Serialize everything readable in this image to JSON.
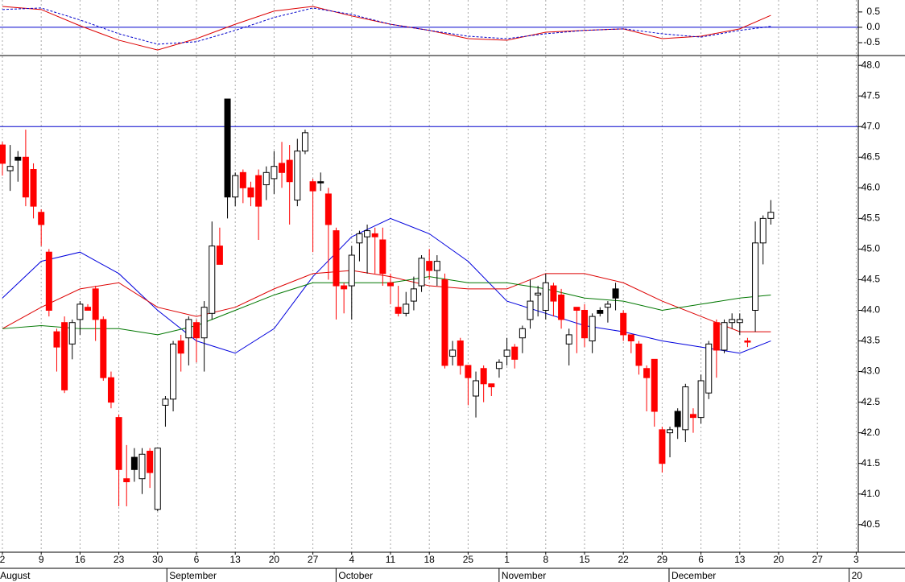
{
  "chart_data": [
    {
      "type": "line",
      "x": [
        0,
        5,
        10,
        15,
        20,
        25,
        30,
        35,
        40,
        45,
        50,
        55,
        60,
        65,
        70,
        75,
        80,
        85,
        90,
        95,
        99
      ],
      "series": [
        {
          "color": "#dd0000",
          "dash": false,
          "values": [
            0.68,
            0.58,
            0.05,
            -0.42,
            -0.74,
            -0.37,
            0.1,
            0.53,
            0.68,
            0.37,
            0.1,
            -0.1,
            -0.37,
            -0.42,
            -0.16,
            -0.1,
            -0.05,
            -0.37,
            -0.29,
            -0.05,
            0.39
          ]
        },
        {
          "color": "#0000cc",
          "dash": true,
          "values": [
            0.58,
            0.63,
            0.24,
            -0.21,
            -0.55,
            -0.47,
            -0.1,
            0.32,
            0.63,
            0.42,
            0.1,
            -0.1,
            -0.29,
            -0.37,
            -0.21,
            -0.1,
            -0.05,
            -0.21,
            -0.32,
            -0.1,
            0.03
          ]
        }
      ],
      "ylim": [
        -0.92,
        0.89
      ],
      "yticks": [
        0.5,
        {
          "value": 0,
          "label": "0.0"
        },
        -0.5
      ],
      "hline": 0,
      "hline_color": "#0000cc"
    },
    {
      "type": "candlestick",
      "open": [
        46.7,
        46.28,
        46.5,
        46.5,
        46.3,
        45.6,
        44.95,
        43.65,
        43.8,
        43.45,
        43.85,
        44.05,
        44.35,
        43.85,
        42.9,
        42.25,
        41.25,
        41.6,
        41.25,
        41.7,
        40.75,
        42.45,
        42.55,
        43.5,
        43.55,
        43.8,
        43.55,
        43.95,
        45.05,
        47.45,
        45.85,
        46.25,
        46.0,
        46.2,
        46.05,
        46.15,
        46.4,
        46.45,
        45.8,
        46.6,
        46.1,
        46.1,
        45.9,
        45.3,
        44.4,
        44.4,
        45.1,
        45.2,
        45.25,
        45.15,
        44.45,
        44.05,
        43.95,
        44.15,
        44.4,
        44.8,
        44.65,
        44.5,
        43.25,
        43.5,
        43.1,
        42.6,
        43.05,
        42.8,
        43.05,
        43.25,
        43.4,
        43.55,
        43.85,
        44.25,
        44.0,
        44.4,
        44.25,
        43.45,
        44.05,
        44.0,
        43.5,
        44.0,
        44.05,
        44.35,
        43.95,
        43.6,
        43.45,
        43.05,
        43.2,
        42.05,
        42.0,
        42.35,
        42.05,
        42.3,
        42.25,
        42.65,
        43.8,
        43.35,
        43.8,
        43.8,
        43.5,
        44.0,
        45.1,
        45.5
      ],
      "high": [
        46.75,
        46.7,
        46.6,
        46.95,
        46.4,
        45.65,
        45.0,
        43.7,
        43.9,
        43.85,
        44.15,
        44.1,
        44.4,
        43.9,
        43.0,
        42.3,
        41.8,
        41.75,
        41.75,
        41.75,
        41.75,
        42.6,
        43.5,
        43.6,
        43.9,
        43.85,
        44.15,
        45.45,
        45.35,
        47.45,
        46.25,
        46.3,
        46.1,
        46.3,
        46.35,
        46.6,
        46.75,
        46.7,
        46.8,
        46.95,
        46.15,
        46.25,
        46.0,
        45.35,
        44.45,
        45.05,
        45.3,
        45.4,
        45.35,
        45.35,
        44.6,
        44.4,
        44.3,
        44.55,
        44.9,
        45.0,
        44.9,
        44.6,
        43.5,
        43.55,
        43.1,
        43.0,
        43.1,
        42.8,
        43.2,
        43.55,
        43.45,
        43.75,
        44.5,
        44.4,
        44.6,
        44.45,
        44.35,
        43.7,
        44.05,
        44.1,
        43.95,
        44.05,
        44.15,
        44.45,
        44.0,
        43.6,
        43.5,
        43.1,
        43.2,
        42.1,
        42.1,
        42.4,
        42.8,
        42.4,
        42.95,
        43.5,
        43.85,
        43.85,
        43.95,
        43.95,
        43.55,
        45.45,
        45.55,
        45.8
      ],
      "low": [
        46.2,
        45.95,
        46.1,
        45.7,
        45.5,
        45.05,
        43.9,
        43.0,
        42.65,
        43.2,
        43.6,
        44.0,
        43.5,
        42.85,
        42.4,
        40.8,
        40.8,
        41.2,
        41.0,
        41.1,
        40.72,
        42.1,
        42.35,
        43.0,
        43.1,
        43.15,
        43.0,
        43.85,
        44.75,
        45.5,
        45.7,
        45.75,
        45.7,
        45.15,
        45.8,
        45.9,
        46.0,
        45.4,
        45.7,
        46.55,
        44.95,
        45.95,
        44.5,
        43.85,
        43.95,
        43.85,
        44.8,
        44.6,
        44.6,
        44.4,
        44.1,
        43.9,
        43.9,
        44.0,
        44.3,
        44.5,
        44.4,
        43.05,
        43.1,
        42.95,
        42.45,
        42.25,
        42.5,
        42.6,
        42.9,
        43.1,
        43.05,
        43.3,
        43.7,
        43.9,
        43.85,
        43.9,
        43.7,
        43.1,
        43.3,
        43.4,
        43.3,
        43.9,
        43.8,
        44.0,
        43.5,
        43.3,
        42.95,
        42.35,
        42.1,
        41.35,
        41.6,
        41.9,
        41.85,
        42.0,
        42.15,
        42.55,
        42.9,
        43.3,
        43.7,
        43.6,
        43.4,
        43.65,
        44.75,
        45.4
      ],
      "close": [
        46.4,
        46.35,
        46.45,
        45.85,
        45.7,
        45.4,
        44.0,
        43.4,
        42.7,
        43.8,
        44.1,
        44.0,
        43.85,
        42.9,
        42.5,
        41.4,
        41.2,
        41.4,
        41.65,
        41.35,
        41.75,
        42.55,
        43.45,
        43.3,
        43.85,
        43.55,
        44.05,
        45.05,
        44.75,
        45.85,
        46.2,
        46.0,
        45.85,
        45.7,
        46.25,
        46.35,
        46.25,
        46.1,
        46.6,
        46.9,
        45.95,
        46.08,
        45.4,
        44.4,
        44.35,
        44.9,
        45.25,
        45.3,
        45.2,
        44.6,
        44.4,
        43.95,
        44.1,
        44.35,
        44.85,
        44.65,
        44.8,
        43.1,
        43.35,
        43.1,
        42.9,
        42.85,
        42.8,
        42.75,
        43.15,
        43.35,
        43.2,
        43.7,
        44.15,
        44.28,
        44.45,
        44.15,
        43.85,
        43.6,
        44.0,
        43.55,
        43.9,
        43.95,
        44.1,
        44.2,
        43.6,
        43.5,
        43.1,
        42.9,
        42.35,
        41.5,
        42.05,
        42.1,
        42.75,
        42.25,
        42.85,
        43.45,
        43.35,
        43.8,
        43.85,
        43.85,
        43.48,
        45.1,
        45.5,
        45.6
      ],
      "fills": [
        "#ff0000",
        "#ffffff",
        "#000000",
        "#ff0000",
        "#ff0000",
        "#ff0000",
        "#ff0000",
        "#ff0000",
        "#ff0000",
        "#ffffff",
        "#ffffff",
        "#ff0000",
        "#ff0000",
        "#ff0000",
        "#ff0000",
        "#ff0000",
        "#ff0000",
        "#000000",
        "#ffffff",
        "#ff0000",
        "#ffffff",
        "#ffffff",
        "#ffffff",
        "#ff0000",
        "#ffffff",
        "#ff0000",
        "#ffffff",
        "#ffffff",
        "#ff0000",
        "#000000",
        "#ffffff",
        "#ff0000",
        "#ff0000",
        "#ff0000",
        "#ffffff",
        "#ffffff",
        "#ff0000",
        "#ff0000",
        "#ffffff",
        "#ffffff",
        "#ff0000",
        "#000000",
        "#ff0000",
        "#ff0000",
        "#ff0000",
        "#ffffff",
        "#ffffff",
        "#ffffff",
        "#ff0000",
        "#ff0000",
        "#ff0000",
        "#ff0000",
        "#ffffff",
        "#ffffff",
        "#ffffff",
        "#ff0000",
        "#ffffff",
        "#ff0000",
        "#ffffff",
        "#ff0000",
        "#ff0000",
        "#ffffff",
        "#ff0000",
        "#ff0000",
        "#ffffff",
        "#ffffff",
        "#ff0000",
        "#ffffff",
        "#ffffff",
        "#ffffff",
        "#ffffff",
        "#ff0000",
        "#ff0000",
        "#ffffff",
        "#ff0000",
        "#ff0000",
        "#ffffff",
        "#000000",
        "#ffffff",
        "#000000",
        "#ff0000",
        "#ff0000",
        "#ff0000",
        "#ff0000",
        "#ff0000",
        "#ff0000",
        "#ffffff",
        "#000000",
        "#ffffff",
        "#ff0000",
        "#ffffff",
        "#ffffff",
        "#ff0000",
        "#ffffff",
        "#ffffff",
        "#ffffff",
        "#ff0000",
        "#ffffff",
        "#ffffff",
        "#ffffff"
      ],
      "lines_x": [
        0,
        5,
        10,
        15,
        20,
        25,
        30,
        35,
        40,
        45,
        50,
        55,
        60,
        65,
        70,
        75,
        80,
        85,
        90,
        95,
        99
      ],
      "lines": [
        {
          "color": "#0000dd",
          "values": [
            44.2,
            44.8,
            44.95,
            44.6,
            44.0,
            43.5,
            43.3,
            43.7,
            44.55,
            45.2,
            45.5,
            45.25,
            44.8,
            44.15,
            43.95,
            43.75,
            43.65,
            43.5,
            43.4,
            43.3,
            43.5
          ]
        },
        {
          "color": "#dd0000",
          "values": [
            43.7,
            44.05,
            44.35,
            44.45,
            44.05,
            43.9,
            44.05,
            44.35,
            44.6,
            44.65,
            44.55,
            44.4,
            44.35,
            44.35,
            44.6,
            44.6,
            44.45,
            44.15,
            43.9,
            43.65,
            43.65
          ]
        },
        {
          "color": "#007700",
          "values": [
            43.7,
            43.75,
            43.7,
            43.7,
            43.6,
            43.75,
            44.0,
            44.25,
            44.45,
            44.45,
            44.45,
            44.55,
            44.45,
            44.45,
            44.35,
            44.2,
            44.15,
            44.0,
            44.1,
            44.2,
            44.25
          ]
        }
      ],
      "hline": 47.0,
      "hline_color": "#0000cc",
      "ylim": [
        40.05,
        48.16
      ],
      "yticks": [
        {
          "value": 48,
          "label": "48.0"
        },
        47.5,
        {
          "value": 47,
          "label": "47.0"
        },
        46.5,
        {
          "value": 46,
          "label": "46.0"
        },
        45.5,
        {
          "value": 45,
          "label": "45.0"
        },
        44.5,
        {
          "value": 44,
          "label": "44.0"
        },
        43.5,
        {
          "value": 43,
          "label": "43.0"
        },
        42.5,
        {
          "value": 42,
          "label": "42.0"
        },
        41.5,
        {
          "value": 41,
          "label": "41.0"
        },
        40.5
      ],
      "xlim": [
        -0.31,
        110.27
      ],
      "xticks": [
        {
          "value": 0,
          "label": "2"
        },
        {
          "value": 5,
          "label": "9"
        },
        {
          "value": 10,
          "label": "16"
        },
        {
          "value": 15,
          "label": "23"
        },
        {
          "value": 20,
          "label": "30"
        },
        {
          "value": 25,
          "label": "6"
        },
        {
          "value": 30,
          "label": "13"
        },
        {
          "value": 35,
          "label": "20"
        },
        {
          "value": 40,
          "label": "27"
        },
        {
          "value": 45,
          "label": "4"
        },
        {
          "value": 50,
          "label": "11"
        },
        {
          "value": 55,
          "label": "18"
        },
        {
          "value": 60,
          "label": "25"
        },
        {
          "value": 65,
          "label": "1"
        },
        {
          "value": 70,
          "label": "8"
        },
        {
          "value": 75,
          "label": "15"
        },
        {
          "value": 80,
          "label": "22"
        },
        {
          "value": 85,
          "label": "29"
        },
        {
          "value": 90,
          "label": "6"
        },
        {
          "value": 95,
          "label": "13"
        },
        {
          "value": 100,
          "label": "20"
        },
        {
          "value": 105,
          "label": "27"
        },
        {
          "value": 110,
          "label": "3"
        }
      ],
      "months": [
        {
          "value": -0.3,
          "label": "August"
        },
        {
          "value": 21.5,
          "label": "September"
        },
        {
          "value": 43.3,
          "label": "October"
        },
        {
          "value": 64.3,
          "label": "November"
        },
        {
          "value": 86.2,
          "label": "December"
        },
        {
          "value": 109.4,
          "label": "20"
        }
      ],
      "grid": true
    }
  ]
}
